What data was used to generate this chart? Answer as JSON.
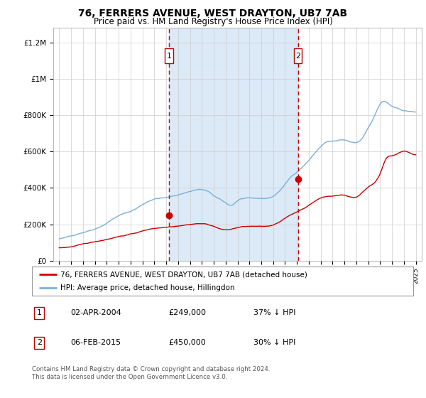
{
  "title": "76, FERRERS AVENUE, WEST DRAYTON, UB7 7AB",
  "subtitle": "Price paid vs. HM Land Registry's House Price Index (HPI)",
  "title_fontsize": 10,
  "subtitle_fontsize": 8.5,
  "background_color": "#ffffff",
  "plot_bg_color": "#ffffff",
  "shade_color": "#dce9f7",
  "grid_color": "#cccccc",
  "hpi_color": "#7ab0d8",
  "price_color": "#cc0000",
  "sale1_year": 2004.25,
  "sale1_price": 249000,
  "sale2_year": 2015.08,
  "sale2_price": 450000,
  "sale_marker_color": "#cc0000",
  "dashed_line_color": "#cc0000",
  "ylim": [
    0,
    1280000
  ],
  "xlim_start": 1994.5,
  "xlim_end": 2025.5,
  "legend_label_price": "76, FERRERS AVENUE, WEST DRAYTON, UB7 7AB (detached house)",
  "legend_label_hpi": "HPI: Average price, detached house, Hillingdon",
  "table_row1": [
    "1",
    "02-APR-2004",
    "£249,000",
    "37% ↓ HPI"
  ],
  "table_row2": [
    "2",
    "06-FEB-2015",
    "£450,000",
    "30% ↓ HPI"
  ],
  "footer": "Contains HM Land Registry data © Crown copyright and database right 2024.\nThis data is licensed under the Open Government Licence v3.0.",
  "ytick_labels": [
    "£0",
    "£200K",
    "£400K",
    "£600K",
    "£800K",
    "£1M",
    "£1.2M"
  ],
  "ytick_values": [
    0,
    200000,
    400000,
    600000,
    800000,
    1000000,
    1200000
  ]
}
